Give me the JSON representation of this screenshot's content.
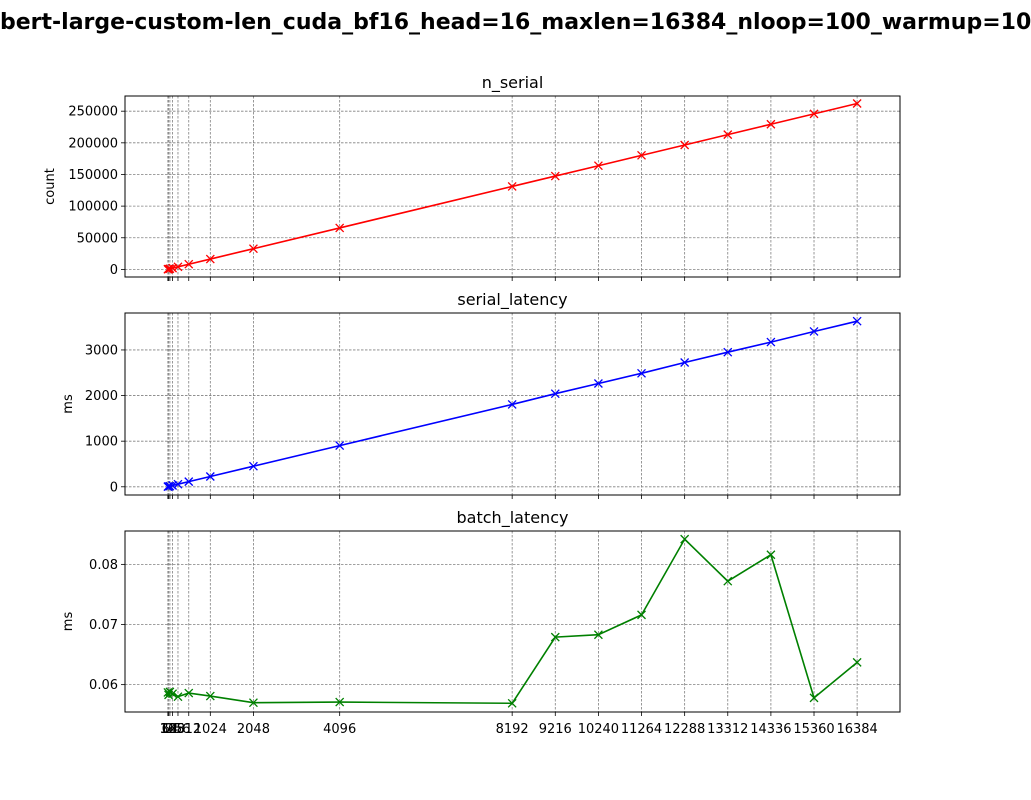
{
  "figure_title": "bert-large-custom-len_cuda_bf16_head=16_maxlen=16384_nloop=100_warmup=10",
  "x_ticks": [
    16,
    32,
    64,
    128,
    256,
    512,
    1024,
    2048,
    4096,
    8192,
    9216,
    10240,
    11264,
    12288,
    13312,
    14336,
    15360,
    16384
  ],
  "x_tick_labels": [
    "16",
    "32",
    "64",
    "128",
    "256",
    "512",
    "1024",
    "2048",
    "4096",
    "8192",
    "9216",
    "10240",
    "11264",
    "12288",
    "13312",
    "14336",
    "15360",
    "16384"
  ],
  "chart_data": [
    {
      "type": "line",
      "title": "n_serial",
      "ylabel": "count",
      "color": "#ff0000",
      "marker": "x",
      "grid": true,
      "x": [
        16,
        32,
        64,
        128,
        256,
        512,
        1024,
        2048,
        4096,
        8192,
        9216,
        10240,
        11264,
        12288,
        13312,
        14336,
        15360,
        16384
      ],
      "values": [
        256,
        512,
        1024,
        2048,
        4096,
        8192,
        16384,
        32768,
        65536,
        131072,
        147456,
        163840,
        180224,
        196608,
        212992,
        229376,
        245760,
        262144
      ],
      "ylim": [
        -12000,
        274000
      ],
      "yticks": [
        0,
        50000,
        100000,
        150000,
        200000,
        250000
      ],
      "ytick_labels": [
        "0",
        "50000",
        "100000",
        "150000",
        "200000",
        "250000"
      ]
    },
    {
      "type": "line",
      "title": "serial_latency",
      "ylabel": "ms",
      "color": "#0000ff",
      "marker": "x",
      "grid": true,
      "x": [
        16,
        32,
        64,
        128,
        256,
        512,
        1024,
        2048,
        4096,
        8192,
        9216,
        10240,
        11264,
        12288,
        13312,
        14336,
        15360,
        16384
      ],
      "values": [
        3.5,
        7,
        14,
        28,
        57,
        113,
        226,
        452,
        903,
        1806,
        2041,
        2264,
        2488,
        2725,
        2951,
        3172,
        3405,
        3630
      ],
      "ylim": [
        -180,
        3810
      ],
      "yticks": [
        0,
        1000,
        2000,
        3000
      ],
      "ytick_labels": [
        "0",
        "1000",
        "2000",
        "3000"
      ]
    },
    {
      "type": "line",
      "title": "batch_latency",
      "ylabel": "ms",
      "color": "#008000",
      "marker": "x",
      "grid": true,
      "x": [
        16,
        32,
        64,
        128,
        256,
        512,
        1024,
        2048,
        4096,
        8192,
        9216,
        10240,
        11264,
        12288,
        13312,
        14336,
        15360,
        16384
      ],
      "values": [
        0.0587,
        0.0583,
        0.0588,
        0.0585,
        0.058,
        0.0586,
        0.0581,
        0.057,
        0.0571,
        0.0569,
        0.0679,
        0.0683,
        0.0716,
        0.0842,
        0.0772,
        0.0816,
        0.0578,
        0.0637
      ],
      "ylim": [
        0.05545,
        0.08555
      ],
      "yticks": [
        0.06,
        0.07,
        0.08
      ],
      "ytick_labels": [
        "0.06",
        "0.07",
        "0.08"
      ]
    }
  ]
}
